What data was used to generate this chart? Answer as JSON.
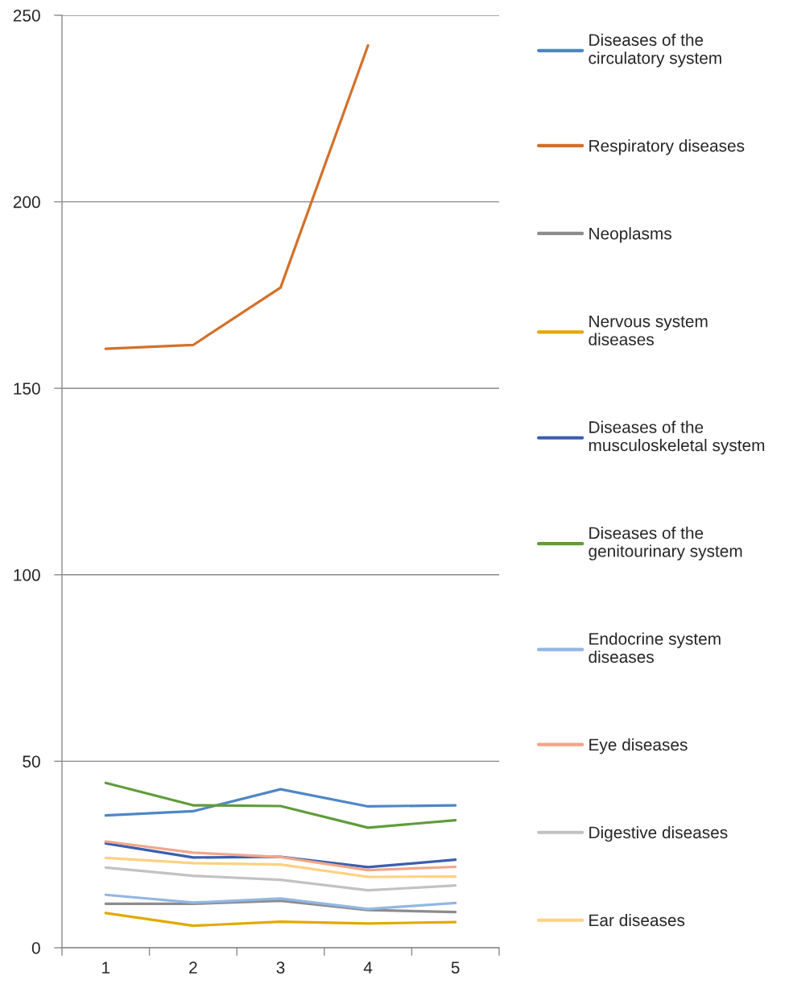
{
  "chart_data": {
    "type": "line",
    "categories": [
      "1",
      "2",
      "3",
      "4",
      "5"
    ],
    "series": [
      {
        "name": "Diseases of the circulatory system",
        "color": "#4e87c6",
        "values": [
          35.5,
          36.6,
          42.5,
          37.9,
          38.2
        ]
      },
      {
        "name": "Respiratory diseases",
        "color": "#d4702a",
        "values": [
          160.6,
          161.6,
          177.0,
          241.9,
          null
        ]
      },
      {
        "name": "Neoplasms",
        "color": "#8c8c8c",
        "values": [
          11.8,
          11.8,
          12.6,
          10.1,
          9.6
        ]
      },
      {
        "name": "Nervous system diseases",
        "color": "#e2a900",
        "values": [
          9.3,
          5.9,
          7.0,
          6.5,
          6.9
        ]
      },
      {
        "name": "Diseases of the musculoskeletal system",
        "color": "#3a5fae",
        "values": [
          28.0,
          24.2,
          24.4,
          21.6,
          23.6
        ]
      },
      {
        "name": "Diseases of the genitourinary system",
        "color": "#609c3c",
        "values": [
          44.2,
          38.2,
          38.0,
          32.2,
          34.2
        ]
      },
      {
        "name": "Endocrine system diseases",
        "color": "#93b7e3",
        "values": [
          14.2,
          12.1,
          13.2,
          10.4,
          12.0
        ]
      },
      {
        "name": "Eye diseases",
        "color": "#f1a68a",
        "values": [
          28.5,
          25.5,
          24.3,
          20.8,
          21.7
        ]
      },
      {
        "name": "Digestive diseases",
        "color": "#c2c2c2",
        "values": [
          21.5,
          19.3,
          18.2,
          15.4,
          16.7
        ]
      },
      {
        "name": "Ear diseases",
        "color": "#ffd182",
        "values": [
          24.1,
          22.7,
          22.3,
          19.0,
          19.1
        ]
      }
    ],
    "ylim": [
      0,
      250
    ],
    "yticks": [
      0,
      50,
      100,
      150,
      200,
      250
    ],
    "grid": "y",
    "legend": "right"
  }
}
